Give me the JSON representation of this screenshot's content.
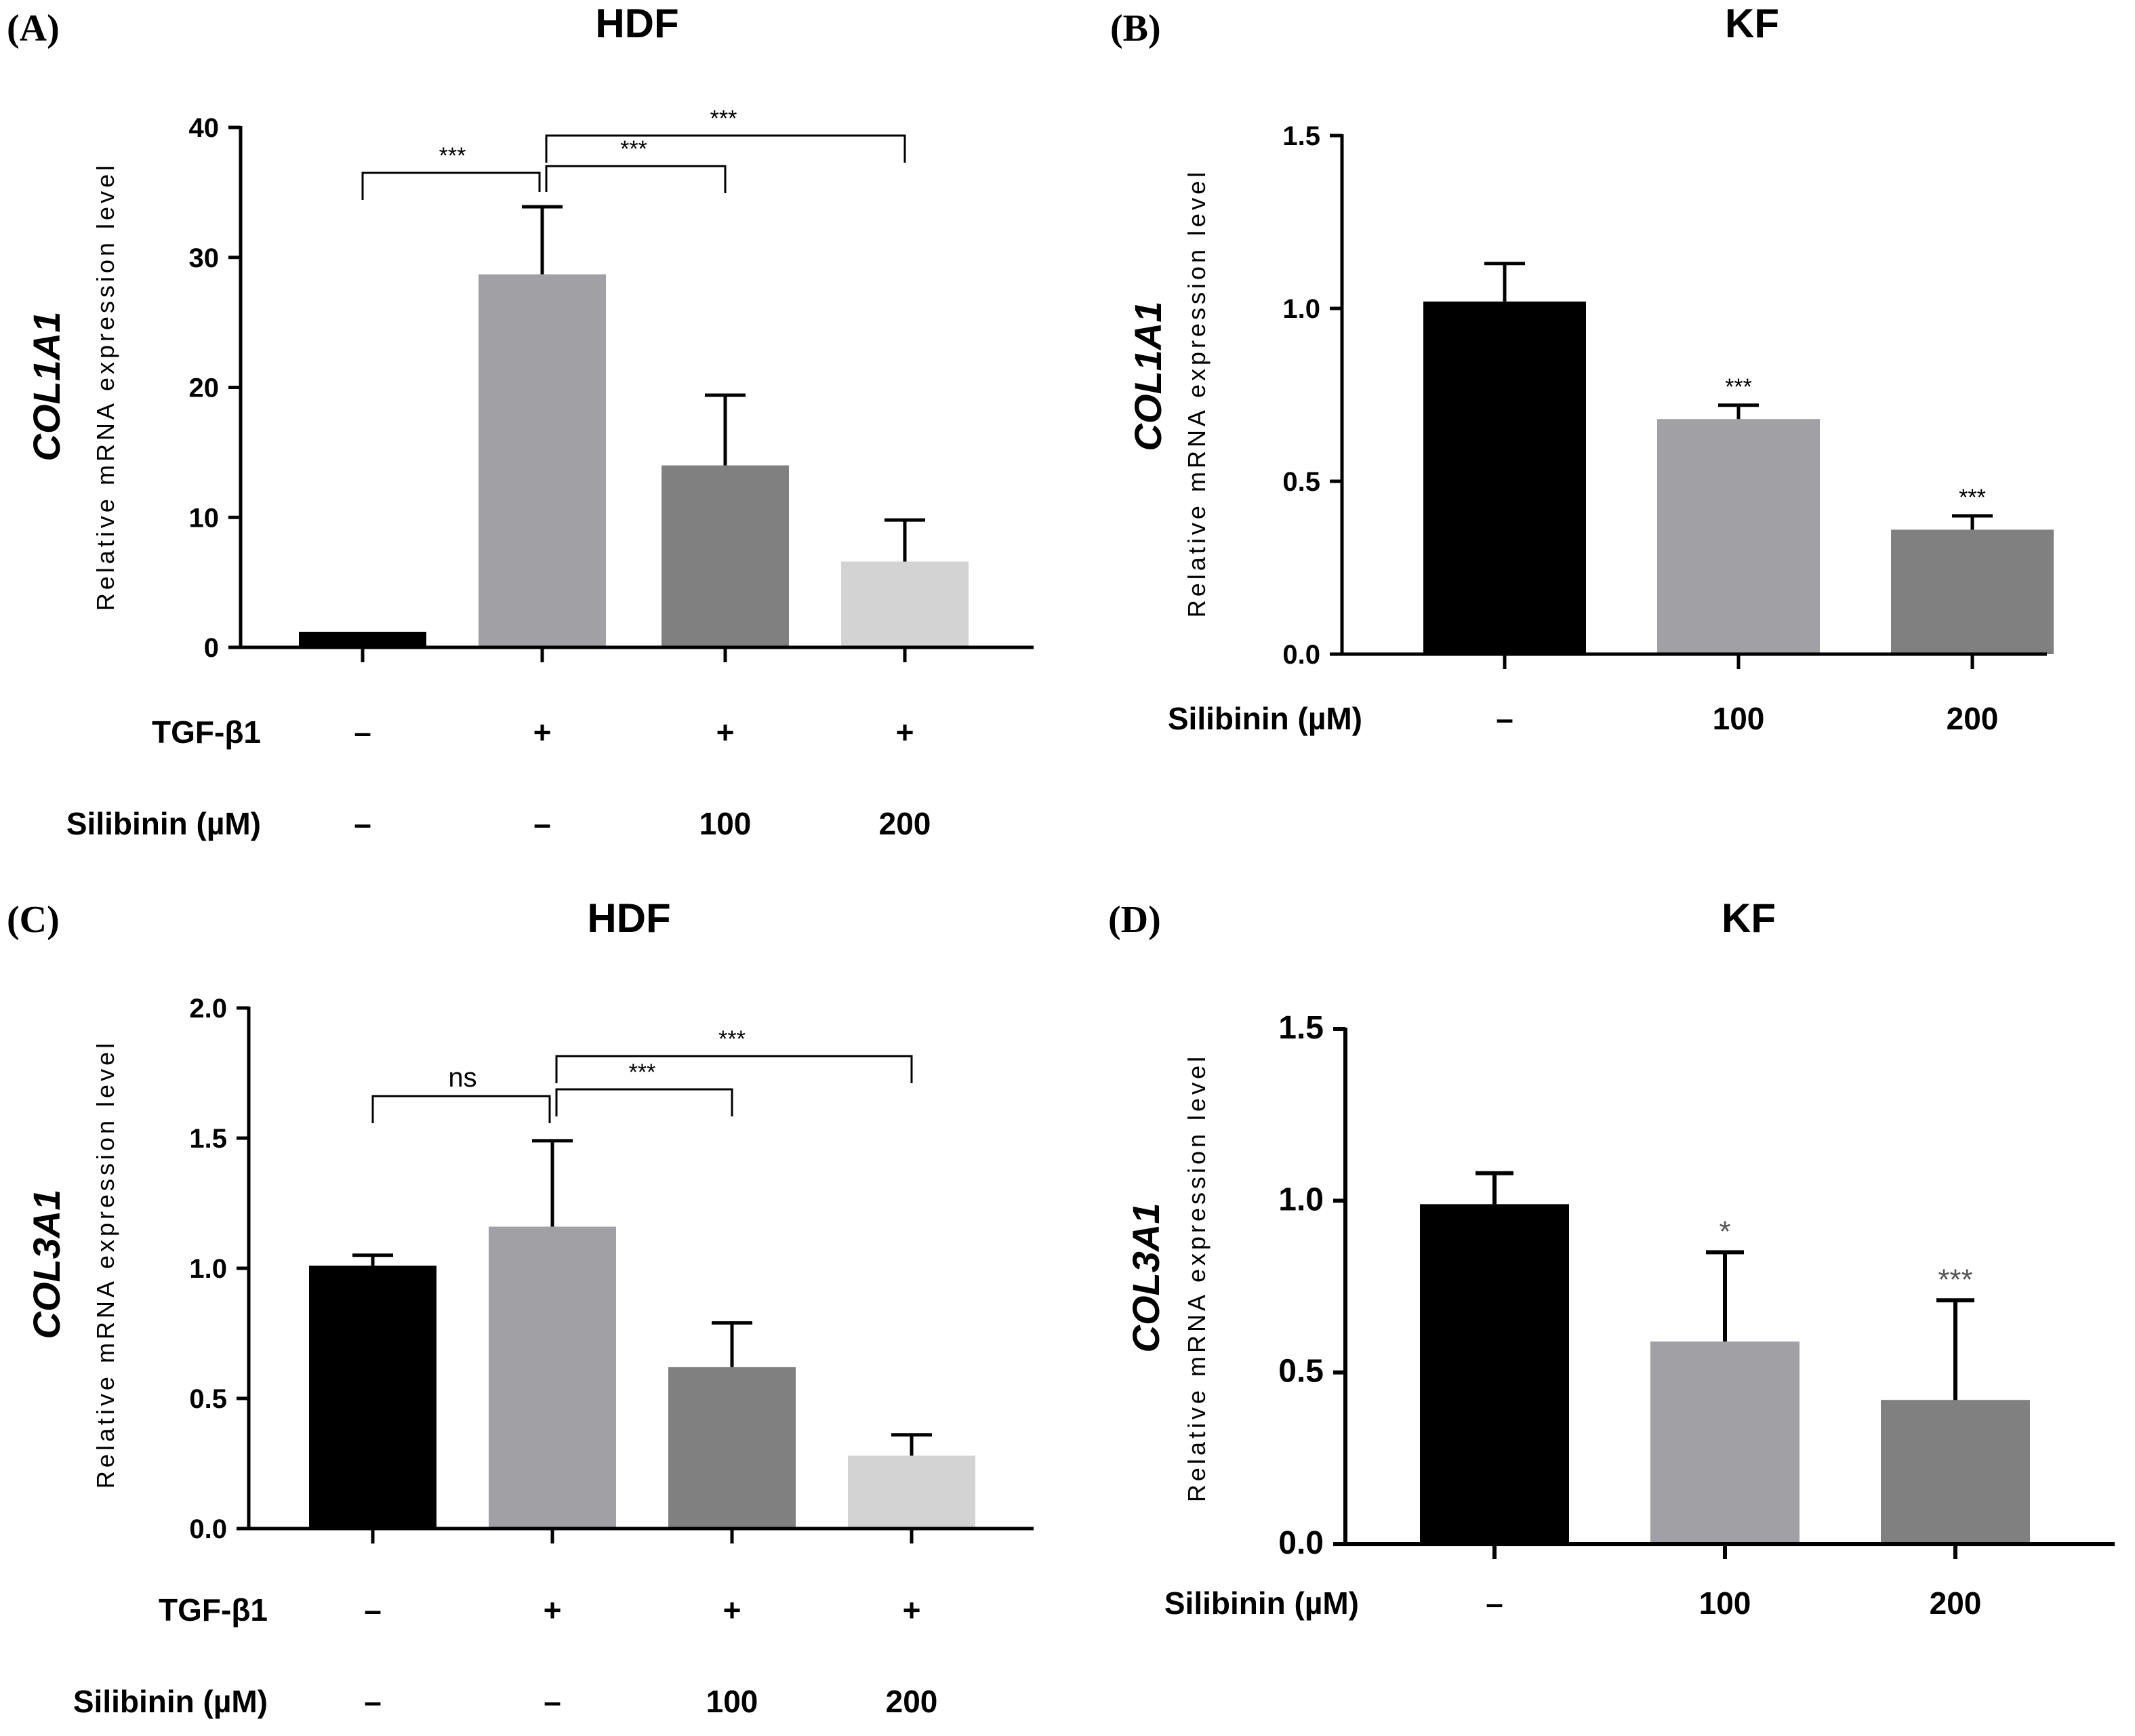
{
  "chart_data": [
    {
      "id": "A",
      "type": "bar",
      "panel_label": "(A)",
      "title": "HDF",
      "ylabel_gene": "COL1A1",
      "ylabel": "Relative  mRNA expression level",
      "ylim": [
        0,
        40
      ],
      "yticks": [
        0,
        10,
        20,
        30,
        40
      ],
      "ytick_labels": [
        "0",
        "10",
        "20",
        "30",
        "40"
      ],
      "values": [
        1.2,
        28.7,
        14.0,
        6.6
      ],
      "errors": [
        0.0,
        5.2,
        5.4,
        3.2
      ],
      "bar_colors": [
        "#000000",
        "#a0a0a5",
        "#808080",
        "#d3d3d3"
      ],
      "condition_rows": [
        {
          "label": "TGF-β1",
          "values": [
            "–",
            "+",
            "+",
            "+"
          ]
        },
        {
          "label": "Silibinin (µM)",
          "values": [
            "–",
            "–",
            "100",
            "200"
          ]
        }
      ],
      "annotations": [],
      "brackets": [
        {
          "from": 0,
          "to": 1,
          "text": "***"
        },
        {
          "from": 1,
          "to": 2,
          "text": "***"
        },
        {
          "from": 1,
          "to": 3,
          "text": "***"
        }
      ]
    },
    {
      "id": "B",
      "type": "bar",
      "panel_label": "(B)",
      "title": "KF",
      "ylabel_gene": "COL1A1",
      "ylabel": "Relative  mRNA expression level",
      "ylim": [
        0,
        1.5
      ],
      "yticks": [
        0,
        0.5,
        1.0,
        1.5
      ],
      "ytick_labels": [
        "0.0",
        "0.5",
        "1.0",
        "1.5"
      ],
      "values": [
        1.02,
        0.68,
        0.36
      ],
      "errors": [
        0.11,
        0.04,
        0.04
      ],
      "bar_colors": [
        "#000000",
        "#a0a0a5",
        "#808080"
      ],
      "condition_rows": [
        {
          "label": "Silibinin (µM)",
          "values": [
            "–",
            "100",
            "200"
          ]
        }
      ],
      "annotations": [
        "",
        "***",
        "***"
      ],
      "brackets": []
    },
    {
      "id": "C",
      "type": "bar",
      "panel_label": "(C)",
      "title": "HDF",
      "ylabel_gene": "COL3A1",
      "ylabel": "Relative  mRNA expression level",
      "ylim": [
        0,
        2.0
      ],
      "yticks": [
        0,
        0.5,
        1.0,
        1.5,
        2.0
      ],
      "ytick_labels": [
        "0.0",
        "0.5",
        "1.0",
        "1.5",
        "2.0"
      ],
      "values": [
        1.01,
        1.16,
        0.62,
        0.28
      ],
      "errors": [
        0.04,
        0.33,
        0.17,
        0.08
      ],
      "bar_colors": [
        "#000000",
        "#a0a0a5",
        "#808080",
        "#d3d3d3"
      ],
      "condition_rows": [
        {
          "label": "TGF-β1",
          "values": [
            "–",
            "+",
            "+",
            "+"
          ]
        },
        {
          "label": "Silibinin (µM)",
          "values": [
            "–",
            "–",
            "100",
            "200"
          ]
        }
      ],
      "annotations": [],
      "brackets": [
        {
          "from": 0,
          "to": 1,
          "text": "ns"
        },
        {
          "from": 1,
          "to": 2,
          "text": "***"
        },
        {
          "from": 1,
          "to": 3,
          "text": "***"
        }
      ]
    },
    {
      "id": "D",
      "type": "bar",
      "panel_label": "(D)",
      "title": "KF",
      "ylabel_gene": "COL3A1",
      "ylabel": "Relative  mRNA expression level",
      "ylim": [
        0,
        1.5
      ],
      "yticks": [
        0,
        0.5,
        1.0,
        1.5
      ],
      "ytick_labels": [
        "0.0",
        "0.5",
        "1.0",
        "1.5"
      ],
      "values": [
        0.99,
        0.59,
        0.42
      ],
      "errors": [
        0.09,
        0.26,
        0.29
      ],
      "bar_colors": [
        "#000000",
        "#a0a0a5",
        "#808080"
      ],
      "condition_rows": [
        {
          "label": "Silibinin (µM)",
          "values": [
            "–",
            "100",
            "200"
          ]
        }
      ],
      "annotations": [
        "",
        "*",
        "***"
      ],
      "brackets": []
    }
  ]
}
